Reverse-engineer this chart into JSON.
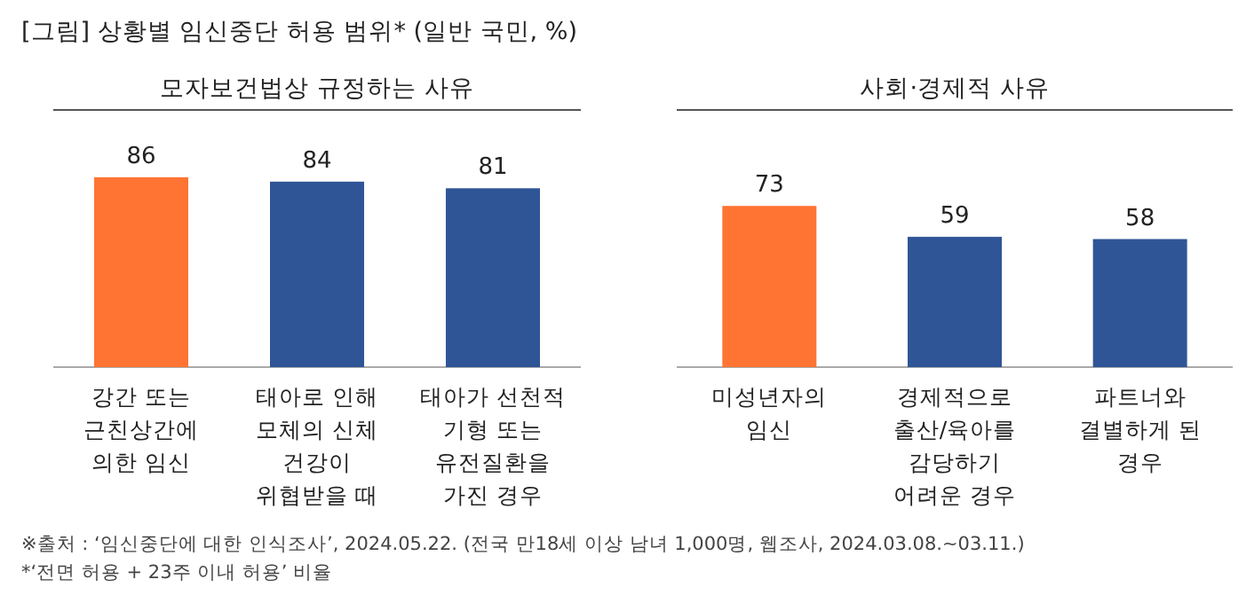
{
  "chart_data": [
    {
      "type": "other",
      "title": "[그림] 상황별 임신중단 허용 범위* (일반 국민, %)",
      "annotations": [
        "※출처 : ‘임신중단에 대한 인식조사’, 2024.05.22. (전국 만18세 이상 남녀 1,000명, 웹조사, 2024.03.08.~03.11.)",
        "*‘전면 허용 + 23주 이내 허용’ 비율"
      ]
    },
    {
      "type": "bar",
      "title": "모자보건법상 규정하는 사유",
      "categories": [
        "강간 또는 근친상간에 의한 임신",
        "태아로 인해 모체의 신체 건강이 위협받을 때",
        "태아가 선천적 기형 또는 유전질환을 가진 경우"
      ],
      "values": [
        86,
        84,
        81
      ],
      "colors": [
        "#ff7433",
        "#2f5597",
        "#2f5597"
      ],
      "data_labels": true
    },
    {
      "type": "bar",
      "title": "사회·경제적 사유",
      "categories": [
        "미성년자의 임신",
        "경제적으로 출산/육아를 감당하기 어려운 경우",
        "파트너와 결별하게 된 경우"
      ],
      "values": [
        73,
        59,
        58
      ],
      "colors": [
        "#ff7433",
        "#2f5597",
        "#2f5597"
      ],
      "data_labels": true
    }
  ]
}
